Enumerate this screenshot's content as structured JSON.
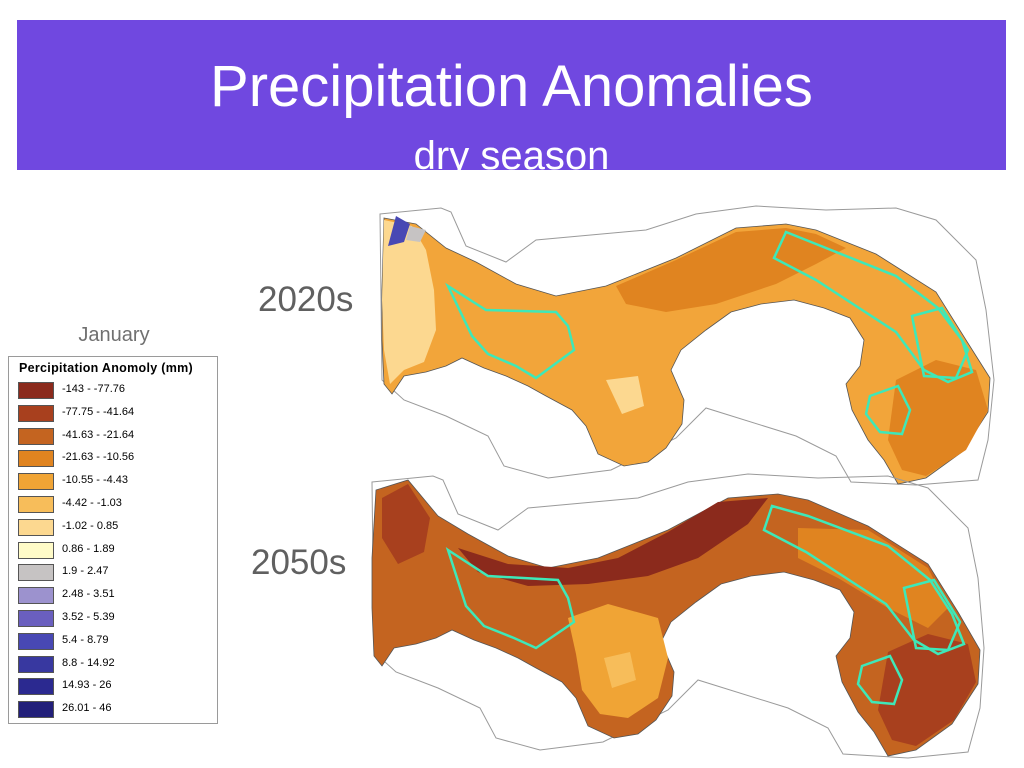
{
  "slide": {
    "title": "Precipitation Anomalies",
    "subtitle": "dry season",
    "header_color": "#7048e0"
  },
  "month_label": "January",
  "maps": [
    {
      "period": "2020s"
    },
    {
      "period": "2050s"
    }
  ],
  "legend": {
    "title": "Percipitation Anomoly (mm)",
    "items": [
      {
        "label": "-143 - -77.76",
        "color": "#8b2a1c"
      },
      {
        "label": "-77.75 - -41.64",
        "color": "#a8401e"
      },
      {
        "label": "-41.63 - -21.64",
        "color": "#c46420"
      },
      {
        "label": "-21.63 - -10.56",
        "color": "#e08420"
      },
      {
        "label": "-10.55 - -4.43",
        "color": "#f0a435"
      },
      {
        "label": "-4.42 - -1.03",
        "color": "#f7bd5a"
      },
      {
        "label": "-1.02 - 0.85",
        "color": "#fcd890"
      },
      {
        "label": "0.86 - 1.89",
        "color": "#fffbc8"
      },
      {
        "label": "1.9 - 2.47",
        "color": "#c6c3c3"
      },
      {
        "label": "2.48 - 3.51",
        "color": "#9c92ce"
      },
      {
        "label": "3.52 - 5.39",
        "color": "#6a5fbf"
      },
      {
        "label": "5.4 - 8.79",
        "color": "#4848b4"
      },
      {
        "label": "8.8 - 14.92",
        "color": "#3838a0"
      },
      {
        "label": "14.93 - 26",
        "color": "#2b2990"
      },
      {
        "label": "26.01 - 46",
        "color": "#221f7a"
      }
    ]
  }
}
